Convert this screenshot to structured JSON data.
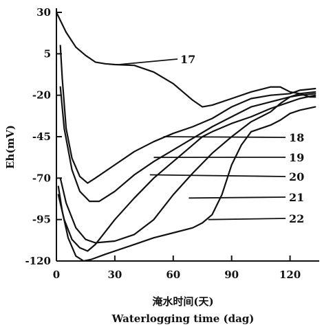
{
  "chart_data": {
    "type": "line",
    "title": "",
    "ylabel": "Eh(mV)",
    "xlabel_cn": "淹水时间(天)",
    "xlabel_en": "Waterlogging time (dag)",
    "xlim": [
      0,
      135
    ],
    "ylim": [
      -120,
      30
    ],
    "x_ticks": [
      0,
      30,
      60,
      90,
      120
    ],
    "x_tick_labels": [
      "0",
      "30",
      "60",
      "90",
      "120"
    ],
    "y_ticks": [
      30,
      5,
      -20,
      -45,
      -70,
      -95,
      -120
    ],
    "y_tick_labels": [
      "30",
      "5",
      "-20",
      "-45",
      "-70",
      "-95",
      "-120"
    ],
    "grid": false,
    "series": [
      {
        "name": "17",
        "points": [
          [
            0,
            30
          ],
          [
            5,
            18
          ],
          [
            10,
            9
          ],
          [
            15,
            4
          ],
          [
            20,
            0
          ],
          [
            25,
            -1
          ],
          [
            30,
            -1.5
          ],
          [
            40,
            -2
          ],
          [
            50,
            -6
          ],
          [
            60,
            -13
          ],
          [
            65,
            -18
          ],
          [
            70,
            -23
          ],
          [
            75,
            -27
          ],
          [
            80,
            -26
          ],
          [
            90,
            -22
          ],
          [
            100,
            -18
          ],
          [
            110,
            -15
          ],
          [
            115,
            -15
          ],
          [
            120,
            -18
          ],
          [
            125,
            -19
          ],
          [
            130,
            -21
          ],
          [
            133,
            -21
          ]
        ]
      },
      {
        "name": "18",
        "points": [
          [
            2,
            10
          ],
          [
            3,
            -10
          ],
          [
            5,
            -40
          ],
          [
            8,
            -58
          ],
          [
            12,
            -69
          ],
          [
            16,
            -73
          ],
          [
            20,
            -70
          ],
          [
            30,
            -62
          ],
          [
            40,
            -54
          ],
          [
            50,
            -48
          ],
          [
            60,
            -43
          ],
          [
            70,
            -39
          ],
          [
            80,
            -34
          ],
          [
            90,
            -27
          ],
          [
            100,
            -22
          ],
          [
            110,
            -20
          ],
          [
            120,
            -19
          ],
          [
            125,
            -17
          ],
          [
            133,
            -16
          ]
        ]
      },
      {
        "name": "19",
        "points": [
          [
            2,
            -15
          ],
          [
            4,
            -40
          ],
          [
            8,
            -65
          ],
          [
            12,
            -78
          ],
          [
            17,
            -84
          ],
          [
            22,
            -84
          ],
          [
            30,
            -78
          ],
          [
            40,
            -68
          ],
          [
            50,
            -60
          ],
          [
            60,
            -53
          ],
          [
            70,
            -46
          ],
          [
            80,
            -39
          ],
          [
            90,
            -33
          ],
          [
            100,
            -27
          ],
          [
            110,
            -24
          ],
          [
            120,
            -21
          ],
          [
            125,
            -19
          ],
          [
            133,
            -18
          ]
        ]
      },
      {
        "name": "20",
        "points": [
          [
            2,
            -70
          ],
          [
            5,
            -85
          ],
          [
            10,
            -100
          ],
          [
            15,
            -107
          ],
          [
            20,
            -109
          ],
          [
            30,
            -108
          ],
          [
            40,
            -104
          ],
          [
            50,
            -95
          ],
          [
            60,
            -80
          ],
          [
            70,
            -67
          ],
          [
            80,
            -55
          ],
          [
            90,
            -45
          ],
          [
            100,
            -36
          ],
          [
            110,
            -30
          ],
          [
            115,
            -25
          ],
          [
            120,
            -21
          ],
          [
            125,
            -20
          ],
          [
            133,
            -19
          ]
        ]
      },
      {
        "name": "21",
        "points": [
          [
            1,
            -80
          ],
          [
            4,
            -95
          ],
          [
            8,
            -107
          ],
          [
            12,
            -112
          ],
          [
            16,
            -114
          ],
          [
            20,
            -110
          ],
          [
            30,
            -95
          ],
          [
            40,
            -82
          ],
          [
            50,
            -70
          ],
          [
            60,
            -60
          ],
          [
            70,
            -50
          ],
          [
            75,
            -45
          ],
          [
            80,
            -42
          ],
          [
            90,
            -37
          ],
          [
            100,
            -33
          ],
          [
            110,
            -28
          ],
          [
            120,
            -24
          ],
          [
            125,
            -22
          ],
          [
            133,
            -20
          ]
        ]
      },
      {
        "name": "22",
        "points": [
          [
            1,
            -75
          ],
          [
            3,
            -90
          ],
          [
            6,
            -106
          ],
          [
            10,
            -117
          ],
          [
            14,
            -120
          ],
          [
            18,
            -119
          ],
          [
            25,
            -116
          ],
          [
            30,
            -114
          ],
          [
            40,
            -110
          ],
          [
            50,
            -106
          ],
          [
            60,
            -103
          ],
          [
            70,
            -100
          ],
          [
            75,
            -97
          ],
          [
            80,
            -92
          ],
          [
            85,
            -80
          ],
          [
            90,
            -62
          ],
          [
            95,
            -50
          ],
          [
            100,
            -42
          ],
          [
            110,
            -38
          ],
          [
            115,
            -35
          ],
          [
            120,
            -31
          ],
          [
            125,
            -29
          ],
          [
            133,
            -27
          ]
        ]
      }
    ]
  }
}
